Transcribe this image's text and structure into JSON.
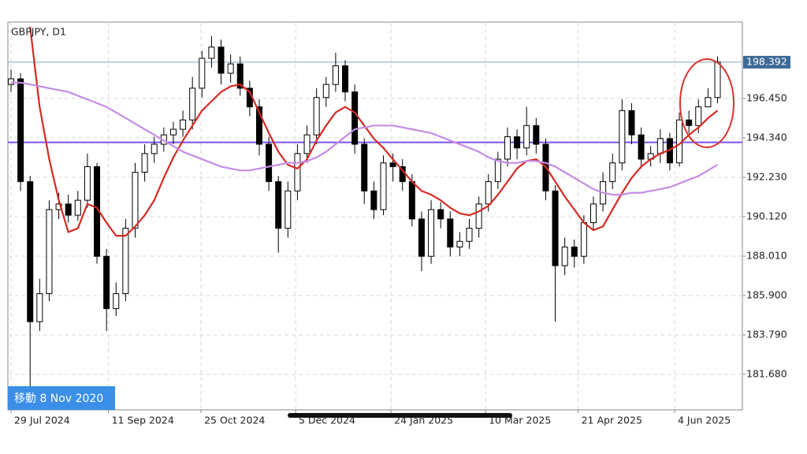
{
  "chart_data": {
    "type": "candlestick",
    "title": "GBPJPY, D1",
    "open": [
      197.2,
      197.5,
      192,
      184.5,
      186,
      190.5,
      190.8,
      190.2,
      191,
      192.8,
      188,
      185.2,
      186,
      189.5,
      192.5,
      193.5,
      194,
      194.5,
      194.8,
      195.3,
      197,
      198.6,
      199.2,
      197.8,
      198.3,
      197,
      196,
      194,
      192,
      189.5,
      191.5,
      193.5,
      194.5,
      196.5,
      197.2,
      198.2,
      196.8,
      194,
      191.5,
      190.5,
      193,
      192.8,
      192,
      190,
      188,
      190.5,
      190,
      188.5,
      188.8,
      189.5,
      190.8,
      192,
      193.2,
      194.4,
      193.8,
      195,
      194,
      191.5,
      187.5,
      188.5,
      188,
      189.8,
      190.8,
      192,
      193,
      195.8,
      194.5,
      193.2,
      193.5,
      194.3,
      193,
      195.3,
      195,
      196,
      196.5
    ],
    "high": [
      198.0,
      197.8,
      192.3,
      186.8,
      191.0,
      191.4,
      191.3,
      191.5,
      193.5,
      193.0,
      188.4,
      186.6,
      190.0,
      193.0,
      194.0,
      194.4,
      194.9,
      195.2,
      195.8,
      197.6,
      199.0,
      199.8,
      199.6,
      198.8,
      198.7,
      197.4,
      196.4,
      194.4,
      192.3,
      192.0,
      194.0,
      195.0,
      197.0,
      197.6,
      198.9,
      198.5,
      197.2,
      194.3,
      192.0,
      193.4,
      193.5,
      193.2,
      192.4,
      190.4,
      191.0,
      190.9,
      190.4,
      189.3,
      190.0,
      191.2,
      192.4,
      193.6,
      194.9,
      194.8,
      196.0,
      195.4,
      194.3,
      191.8,
      189.0,
      188.9,
      190.2,
      191.2,
      192.5,
      193.5,
      196.4,
      196.2,
      194.9,
      193.9,
      194.8,
      194.6,
      195.7,
      195.8,
      196.4,
      197.0,
      198.7
    ],
    "low": [
      196.8,
      191.5,
      181.0,
      184.0,
      185.6,
      190.0,
      189.8,
      189.9,
      190.6,
      187.6,
      184.0,
      184.8,
      185.6,
      189.0,
      192.0,
      193.0,
      193.6,
      194.0,
      194.4,
      194.8,
      196.5,
      198.1,
      197.2,
      197.3,
      196.6,
      195.5,
      193.4,
      191.5,
      188.2,
      189.0,
      191.0,
      193.0,
      194.0,
      196.0,
      196.8,
      196.3,
      193.5,
      190.8,
      190.0,
      190.2,
      192.0,
      191.5,
      189.6,
      187.2,
      187.6,
      189.5,
      188.0,
      188.0,
      188.4,
      189.0,
      190.4,
      191.6,
      192.8,
      193.2,
      193.4,
      193.5,
      191.0,
      184.5,
      187.0,
      187.4,
      187.6,
      189.4,
      190.4,
      191.6,
      192.6,
      194.0,
      192.7,
      192.8,
      193.0,
      192.6,
      192.8,
      194.6,
      194.6,
      196.0,
      196.2
    ],
    "close": [
      197.5,
      192,
      184.5,
      186,
      190.5,
      190.8,
      190.2,
      191,
      192.8,
      188,
      185.2,
      186,
      189.5,
      192.5,
      193.5,
      194,
      194.5,
      194.8,
      195.3,
      197,
      198.6,
      199.2,
      197.8,
      198.3,
      197,
      196,
      194,
      192,
      189.5,
      191.5,
      193.5,
      194.5,
      196.5,
      197.2,
      198.2,
      196.8,
      194,
      191.5,
      190.5,
      193,
      192.8,
      192,
      190,
      188,
      190.5,
      190,
      188.5,
      188.8,
      189.5,
      190.8,
      192,
      193.2,
      194.4,
      193.8,
      195,
      194,
      191.5,
      187.5,
      188.5,
      188,
      189.8,
      190.8,
      192,
      193,
      195.8,
      194.5,
      193.2,
      193.5,
      194.3,
      193,
      195.3,
      195,
      196,
      196.5,
      198.4
    ],
    "series": [
      {
        "color": "#d42a24",
        "values": [
          null,
          null,
          200.3,
          196,
          193.2,
          191,
          189.3,
          189.5,
          190.8,
          190.6,
          189.8,
          189.1,
          189.1,
          189.6,
          190.2,
          191,
          192.2,
          193.3,
          194.2,
          195,
          195.8,
          196.3,
          196.8,
          197.1,
          197.2,
          196.8,
          195.7,
          194.6,
          193.6,
          192.9,
          192.7,
          193.2,
          194.2,
          195,
          195.7,
          196,
          195.7,
          195,
          194.3,
          193.8,
          193.2,
          192.6,
          192,
          191.5,
          191.3,
          191,
          190.6,
          190.3,
          190.2,
          190.4,
          190.7,
          191.3,
          192,
          192.7,
          193.1,
          193.2,
          192.8,
          192,
          191.2,
          190.5,
          189.8,
          189.4,
          189.6,
          190.5,
          191.4,
          192.2,
          192.8,
          193.2,
          193.5,
          193.7,
          194,
          194.5,
          194.9,
          195.4,
          195.8
        ]
      },
      {
        "color": "#c68ce6",
        "values": [
          197.3,
          197.3,
          197.2,
          197.1,
          197,
          196.9,
          196.8,
          196.6,
          196.4,
          196.2,
          196,
          195.7,
          195.4,
          195.1,
          194.8,
          194.5,
          194.2,
          193.9,
          193.6,
          193.4,
          193.2,
          193,
          192.8,
          192.7,
          192.6,
          192.6,
          192.7,
          192.8,
          192.9,
          193,
          193,
          193.1,
          193.3,
          193.6,
          194,
          194.4,
          194.8,
          194.9,
          195,
          195,
          195,
          194.9,
          194.8,
          194.7,
          194.6,
          194.4,
          194.2,
          194,
          193.8,
          193.6,
          193.3,
          193.1,
          193,
          193,
          193.1,
          193.1,
          193,
          192.8,
          192.5,
          192.2,
          191.9,
          191.6,
          191.4,
          191.3,
          191.3,
          191.4,
          191.4,
          191.5,
          191.6,
          191.7,
          191.9,
          192.1,
          192.3,
          192.6,
          192.9
        ]
      }
    ],
    "hline": {
      "value": 194.1,
      "color": "#7c52ee"
    },
    "last_price": {
      "value": 198.392,
      "label": "198.392"
    },
    "annotation": "移動 8 Nov 2020",
    "ylim": [
      179.78,
      200.54
    ],
    "yticks": [
      {
        "value": 196.45,
        "label": "196.450"
      },
      {
        "value": 194.34,
        "label": "194.340"
      },
      {
        "value": 192.23,
        "label": "192.230"
      },
      {
        "value": 190.12,
        "label": "190.120"
      },
      {
        "value": 188.01,
        "label": "188.010"
      },
      {
        "value": 185.9,
        "label": "185.900"
      },
      {
        "value": 183.79,
        "label": "183.790"
      },
      {
        "value": 181.68,
        "label": "181.680"
      }
    ],
    "xlim": [
      -0.33,
      76.6
    ],
    "xticks": [
      {
        "value": 0,
        "label": "29 Jul 2024"
      },
      {
        "value": 10.2,
        "label": "11 Sep 2024"
      },
      {
        "value": 19.9,
        "label": "25 Oct 2024"
      },
      {
        "value": 29.8,
        "label": "5 Dec 2024"
      },
      {
        "value": 39.8,
        "label": "24 Jan 2025"
      },
      {
        "value": 49.7,
        "label": "10 Mar 2025"
      },
      {
        "value": 59.4,
        "label": "21 Apr 2025"
      },
      {
        "value": 69.5,
        "label": "4 Jun 2025"
      }
    ],
    "grid": true
  }
}
